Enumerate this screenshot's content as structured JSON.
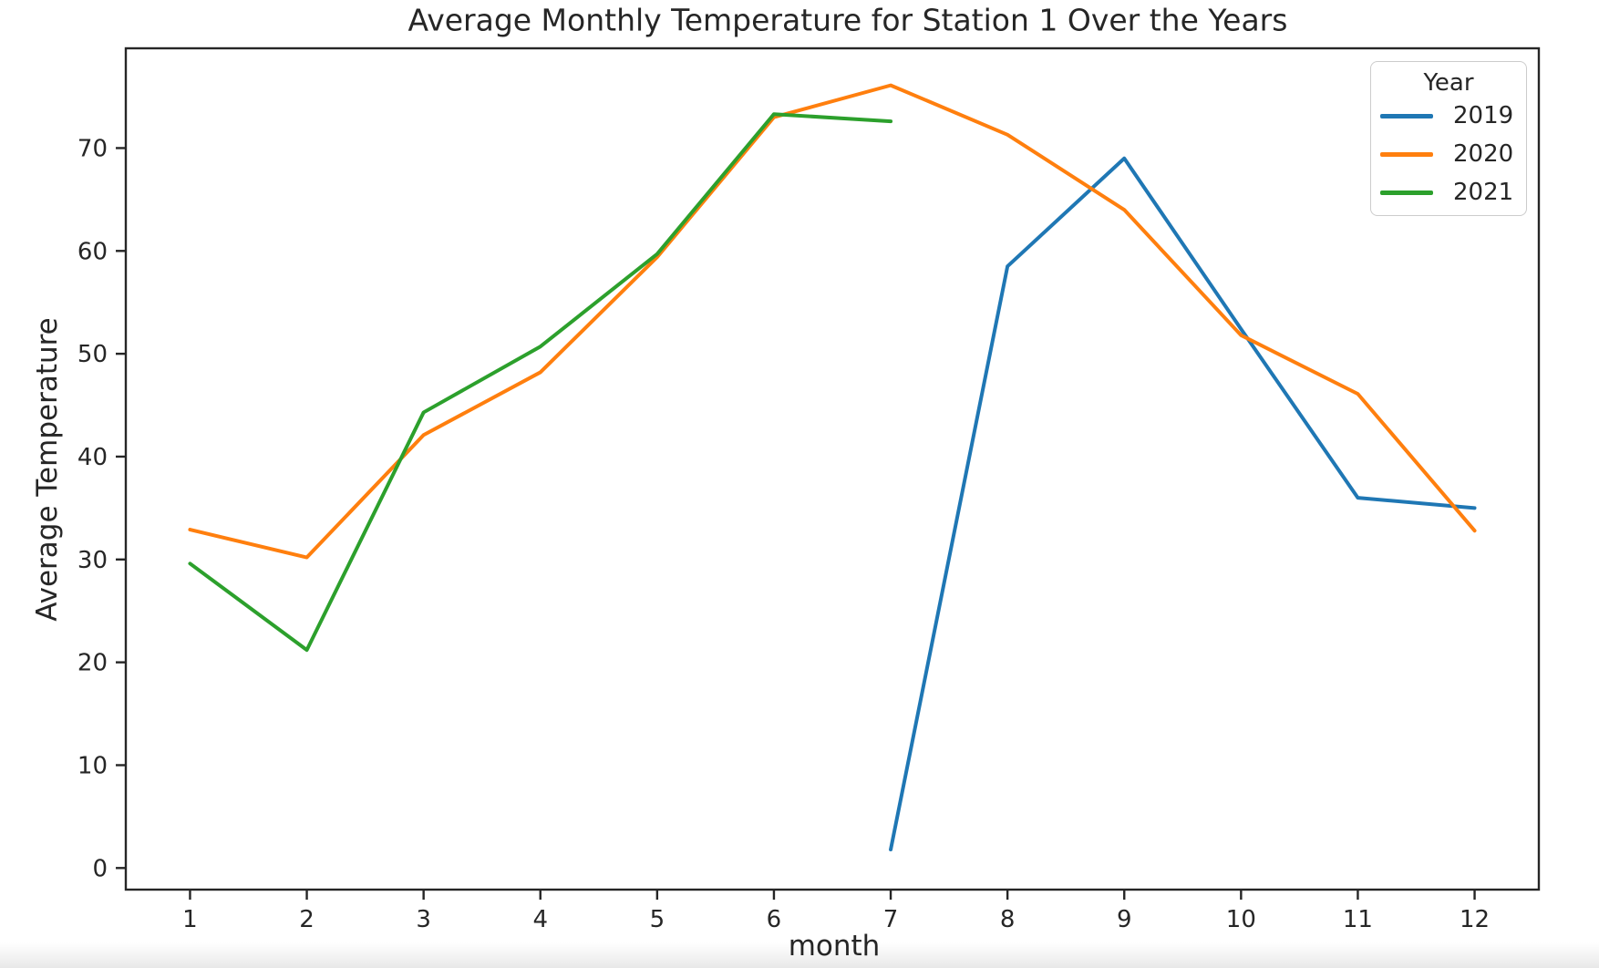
{
  "chart_data": {
    "type": "line",
    "title": "Average Monthly Temperature for Station 1 Over the Years",
    "xlabel": "month",
    "ylabel": "Average Temperature",
    "legend_title": "Year",
    "legend_position": "upper right",
    "grid": false,
    "x_ticks": [
      1,
      2,
      3,
      4,
      5,
      6,
      7,
      8,
      9,
      10,
      11,
      12
    ],
    "y_ticks": [
      0,
      10,
      20,
      30,
      40,
      50,
      60,
      70
    ],
    "xlim": [
      0.45,
      12.55
    ],
    "ylim": [
      -2.1,
      79.7
    ],
    "axis_color": "#262626",
    "series": [
      {
        "name": "2019",
        "color": "#1f77b4",
        "x": [
          7,
          8,
          9,
          10,
          11,
          12
        ],
        "y": [
          1.8,
          58.5,
          69.0,
          52.4,
          36.0,
          35.0
        ]
      },
      {
        "name": "2020",
        "color": "#ff7f0e",
        "x": [
          1,
          2,
          3,
          4,
          5,
          6,
          7,
          8,
          9,
          10,
          11,
          12
        ],
        "y": [
          32.9,
          30.2,
          42.1,
          48.2,
          59.4,
          73.0,
          76.1,
          71.3,
          64.0,
          51.8,
          46.1,
          32.8
        ]
      },
      {
        "name": "2021",
        "color": "#2ca02c",
        "x": [
          1,
          2,
          3,
          4,
          5,
          6,
          7
        ],
        "y": [
          29.6,
          21.2,
          44.3,
          50.7,
          59.7,
          73.3,
          72.6
        ]
      }
    ]
  }
}
